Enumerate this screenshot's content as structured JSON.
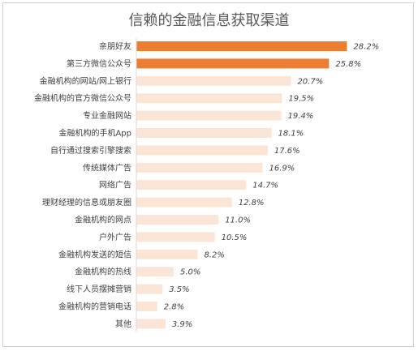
{
  "chart_data": {
    "type": "bar",
    "orientation": "horizontal",
    "title": "信赖的金融信息获取渠道",
    "categories": [
      "亲朋好友",
      "第三方微信公众号",
      "金融机构的网站/网上银行",
      "金融机构的官方微信公众号",
      "专业金融网站",
      "金融机构的手机App",
      "自行通过搜索引擎搜索",
      "传统媒体广告",
      "网络广告",
      "理财经理的信息或朋友圈",
      "金融机构的网点",
      "户外广告",
      "金融机构发送的短信",
      "金融机构的热线",
      "线下人员摆摊营销",
      "金融机构的营销电话",
      "其他"
    ],
    "values": [
      28.2,
      25.8,
      20.7,
      19.5,
      19.4,
      18.1,
      17.6,
      16.9,
      14.7,
      12.8,
      11.0,
      10.5,
      8.2,
      5.0,
      3.5,
      2.8,
      3.9
    ],
    "value_labels": [
      "28.2%",
      "25.8%",
      "20.7%",
      "19.5%",
      "19.4%",
      "18.1%",
      "17.6%",
      "16.9%",
      "14.7%",
      "12.8%",
      "11.0%",
      "10.5%",
      "8.2%",
      "5.0%",
      "3.5%",
      "2.8%",
      "3.9%"
    ],
    "unit": "%",
    "highlight_count": 2,
    "colors": {
      "highlight": "#ed7d31",
      "normal": "#fbe5d6"
    },
    "xlim": [
      0,
      30
    ],
    "grid": false,
    "legend": "none"
  }
}
